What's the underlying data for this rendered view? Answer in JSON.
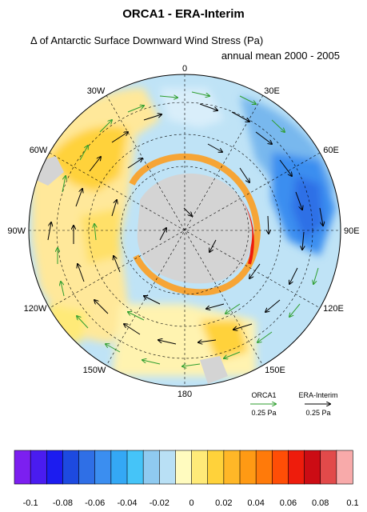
{
  "title": "ORCA1 - ERA-Interim",
  "subtitle_left": "Δ of Antarctic Surface Downward Wind Stress (Pa)",
  "subtitle_right": "annual mean 2000 - 2005",
  "longitude_labels": {
    "top": "0",
    "bottom": "180",
    "left": "90W",
    "right": "90E",
    "l30w": "30W",
    "l60w": "60W",
    "l120w": "120W",
    "l150w": "150W",
    "r30e": "30E",
    "r60e": "60E",
    "r120e": "120E",
    "r150e": "150E"
  },
  "legend": {
    "orca_label": "ORCA1",
    "orca_scale": "0.25 Pa",
    "orca_color": "#2e9e2e",
    "era_label": "ERA-Interim",
    "era_scale": "0.25 Pa",
    "era_color": "#000000"
  },
  "colorbar": {
    "colors": [
      "#7c1ff0",
      "#4a1cf0",
      "#1c1cf0",
      "#1d4ae0",
      "#2f6fe6",
      "#3b8ef0",
      "#34a8f5",
      "#45c4f8",
      "#8fcaf0",
      "#b9e0f5",
      "#fffbbf",
      "#ffea78",
      "#ffd23a",
      "#ffb727",
      "#ff9a14",
      "#ff7a0a",
      "#ff4e06",
      "#ee1c0c",
      "#cc0c14",
      "#e24a4a",
      "#f8aaaa"
    ],
    "labels": [
      "-0.1",
      "-0.08",
      "-0.06",
      "-0.04",
      "-0.02",
      "0",
      "0.02",
      "0.04",
      "0.06",
      "0.08",
      "0.1"
    ]
  }
}
